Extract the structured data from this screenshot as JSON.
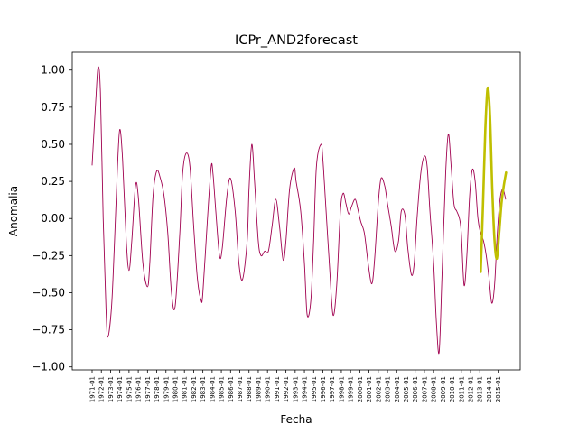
{
  "chart_data": {
    "type": "line",
    "title": "ICPr_AND2forecast",
    "xlabel": "Fecha",
    "ylabel": "Anomalia",
    "ylim": [
      -1.02,
      1.12
    ],
    "yticks": [
      -1.0,
      -0.75,
      -0.5,
      -0.25,
      0.0,
      0.25,
      0.5,
      0.75,
      1.0
    ],
    "ytick_labels": [
      "−1.00",
      "−0.75",
      "−0.50",
      "−0.25",
      "0.00",
      "0.25",
      "0.50",
      "0.75",
      "1.00"
    ],
    "x_start": 1971,
    "xticks": [
      "1971-01",
      "1972-01",
      "1973-01",
      "1974-01",
      "1975-01",
      "1976-01",
      "1977-01",
      "1978-01",
      "1979-01",
      "1980-01",
      "1981-01",
      "1982-01",
      "1983-01",
      "1984-01",
      "1985-01",
      "1986-01",
      "1987-01",
      "1988-01",
      "1989-01",
      "1990-01",
      "1991-01",
      "1992-01",
      "1993-01",
      "1994-01",
      "1995-01",
      "1996-01",
      "1997-01",
      "1998-01",
      "1999-01",
      "2000-01",
      "2001-01",
      "2002-01",
      "2003-01",
      "2004-01",
      "2005-01",
      "2006-01",
      "2007-01",
      "2008-01",
      "2009-01",
      "2010-01",
      "2011-01",
      "2012-01",
      "2013-01",
      "2014-01",
      "2015-01"
    ],
    "grid": false,
    "series": [
      {
        "color": "#a0004f",
        "x": [
          1971.0,
          1971.4,
          1971.65,
          1971.9,
          1972.2,
          1972.5,
          1972.7,
          1973.1,
          1973.4,
          1973.75,
          1974.0,
          1974.3,
          1974.7,
          1975.0,
          1975.3,
          1975.7,
          1976.0,
          1976.5,
          1977.0,
          1977.25,
          1977.6,
          1978.0,
          1978.4,
          1978.8,
          1979.2,
          1979.6,
          1980.0,
          1980.5,
          1980.8,
          1981.2,
          1981.6,
          1982.0,
          1982.4,
          1982.8,
          1983.0,
          1983.5,
          1983.9,
          1984.1,
          1984.4,
          1984.8,
          1985.1,
          1985.6,
          1986.0,
          1986.5,
          1986.9,
          1987.3,
          1987.8,
          1988.0,
          1988.3,
          1988.6,
          1989.0,
          1989.3,
          1989.7,
          1990.1,
          1990.5,
          1990.9,
          1991.3,
          1991.7,
          1992.0,
          1992.4,
          1992.9,
          1993.1,
          1993.6,
          1994.0,
          1994.3,
          1994.7,
          1995.0,
          1995.3,
          1995.8,
          1996.0,
          1996.3,
          1996.7,
          1997.1,
          1997.5,
          1997.9,
          1998.2,
          1998.5,
          1998.8,
          1999.1,
          1999.5,
          1999.8,
          2000.1,
          2000.5,
          2000.9,
          2001.3,
          2001.6,
          2002.0,
          2002.3,
          2002.7,
          2003.0,
          2003.4,
          2003.8,
          2004.2,
          2004.5,
          2004.9,
          2005.2,
          2005.6,
          2005.9,
          2006.2,
          2006.6,
          2007.0,
          2007.3,
          2007.6,
          2008.0,
          2008.3,
          2008.6,
          2008.9,
          2009.3,
          2009.6,
          2009.9,
          2010.2,
          2010.5,
          2010.8,
          2011.0,
          2011.3,
          2011.6,
          2011.9,
          2012.2,
          2012.5,
          2012.8,
          2013.1,
          2013.4,
          2013.7,
          2014.0,
          2014.3,
          2014.6,
          2014.9,
          2015.2,
          2015.5,
          2015.8
        ],
        "y": [
          0.36,
          0.8,
          1.02,
          0.85,
          0.0,
          -0.6,
          -0.8,
          -0.6,
          -0.2,
          0.35,
          0.6,
          0.4,
          -0.15,
          -0.35,
          -0.15,
          0.22,
          0.15,
          -0.3,
          -0.46,
          -0.3,
          0.15,
          0.32,
          0.27,
          0.15,
          -0.1,
          -0.5,
          -0.59,
          -0.1,
          0.3,
          0.44,
          0.35,
          -0.05,
          -0.4,
          -0.55,
          -0.5,
          0.0,
          0.35,
          0.3,
          0.05,
          -0.25,
          -0.2,
          0.15,
          0.27,
          0.05,
          -0.3,
          -0.41,
          -0.15,
          0.2,
          0.5,
          0.25,
          -0.15,
          -0.25,
          -0.22,
          -0.22,
          -0.05,
          0.13,
          -0.05,
          -0.28,
          -0.15,
          0.2,
          0.34,
          0.25,
          0.05,
          -0.3,
          -0.65,
          -0.55,
          -0.15,
          0.35,
          0.5,
          0.4,
          0.1,
          -0.3,
          -0.65,
          -0.45,
          0.05,
          0.17,
          0.1,
          0.03,
          0.08,
          0.13,
          0.06,
          -0.02,
          -0.1,
          -0.3,
          -0.44,
          -0.28,
          0.1,
          0.27,
          0.22,
          0.1,
          -0.05,
          -0.22,
          -0.15,
          0.05,
          0.02,
          -0.2,
          -0.38,
          -0.3,
          0.0,
          0.3,
          0.42,
          0.35,
          0.05,
          -0.3,
          -0.7,
          -0.9,
          -0.4,
          0.3,
          0.57,
          0.35,
          0.1,
          0.05,
          0.0,
          -0.1,
          -0.45,
          -0.25,
          0.15,
          0.33,
          0.25,
          0.0,
          -0.1,
          -0.15,
          -0.25,
          -0.4,
          -0.57,
          -0.45,
          -0.1,
          0.13,
          0.2,
          0.13
        ]
      },
      {
        "color": "#bfbf00",
        "x": [
          2013.1,
          2013.35,
          2013.6,
          2013.85,
          2014.1,
          2014.35,
          2014.6,
          2014.85,
          2015.1,
          2015.35,
          2015.6,
          2015.85
        ],
        "y": [
          -0.36,
          0.1,
          0.6,
          0.88,
          0.7,
          0.2,
          -0.15,
          -0.27,
          -0.1,
          0.1,
          0.22,
          0.31
        ]
      }
    ]
  }
}
